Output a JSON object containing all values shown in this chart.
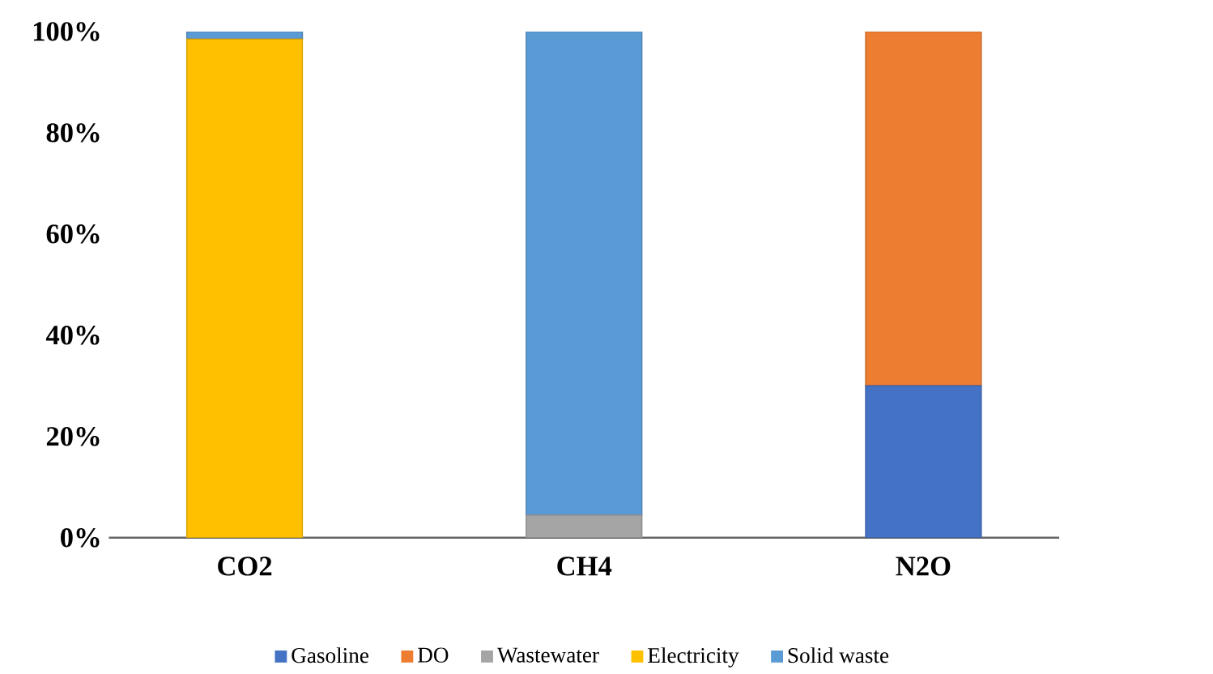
{
  "chart_data": {
    "type": "bar",
    "stacked": true,
    "categories": [
      "CO2",
      "CH4",
      "N2O"
    ],
    "series": [
      {
        "name": "Gasoline",
        "color": "#4472c4",
        "values": [
          0,
          0,
          30
        ]
      },
      {
        "name": "DO",
        "color": "#ed7d31",
        "values": [
          0,
          0,
          70
        ]
      },
      {
        "name": "Wastewater",
        "color": "#a5a5a5",
        "values": [
          0,
          4.5,
          0
        ]
      },
      {
        "name": "Electricity",
        "color": "#ffc000",
        "values": [
          98.5,
          0,
          0
        ]
      },
      {
        "name": "Solid waste",
        "color": "#5b9bd5",
        "values": [
          1.5,
          95.5,
          0
        ]
      }
    ],
    "ylim": [
      0,
      100
    ],
    "yticks": [
      {
        "value": 0,
        "label": "0%"
      },
      {
        "value": 20,
        "label": "20%"
      },
      {
        "value": 40,
        "label": "40%"
      },
      {
        "value": 60,
        "label": "60%"
      },
      {
        "value": 80,
        "label": "80%"
      },
      {
        "value": 100,
        "label": "100%"
      }
    ],
    "legend": "bottom"
  }
}
